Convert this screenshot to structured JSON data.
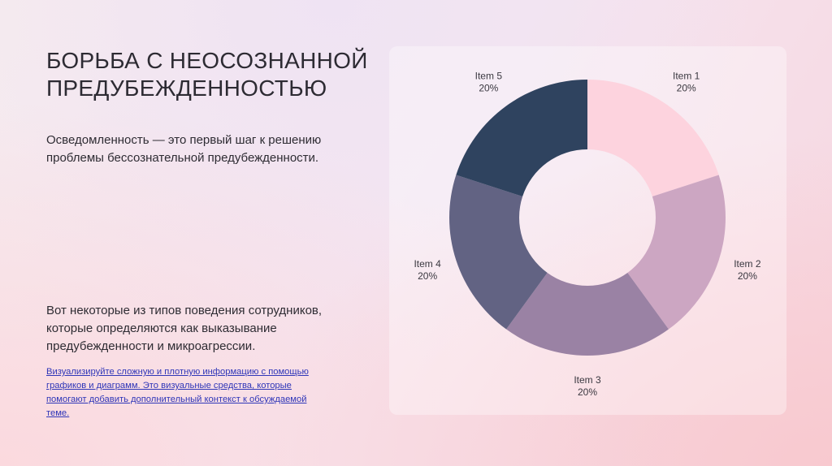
{
  "slide": {
    "title": "БОРЬБА С НЕОСОЗНАННОЙ ПРЕДУБЕЖДЕННОСТЬЮ",
    "paragraph1": "Осведомленность — это первый шаг к решению проблемы бессознательной предубежденности.",
    "paragraph2": "Вот некоторые из типов поведения сотрудников, которые определяются как выказывание предубежденности и микроагрессии.",
    "link_text": "Визуализируйте сложную и плотную информацию с помощью графиков и диаграмм. Это визуальные средства, которые помогают добавить дополнительный контекст к обсуждаемой теме."
  },
  "chart_data": {
    "type": "pie",
    "donut": true,
    "categories": [
      "Item 1",
      "Item 2",
      "Item 3",
      "Item 4",
      "Item 5"
    ],
    "values": [
      20,
      20,
      20,
      20,
      20
    ],
    "value_labels": [
      "20%",
      "20%",
      "20%",
      "20%",
      "20%"
    ],
    "colors": [
      "#fdd3de",
      "#cca6c2",
      "#9a82a4",
      "#626383",
      "#2f435f"
    ],
    "start_angle_deg": 0,
    "direction": "clockwise"
  }
}
